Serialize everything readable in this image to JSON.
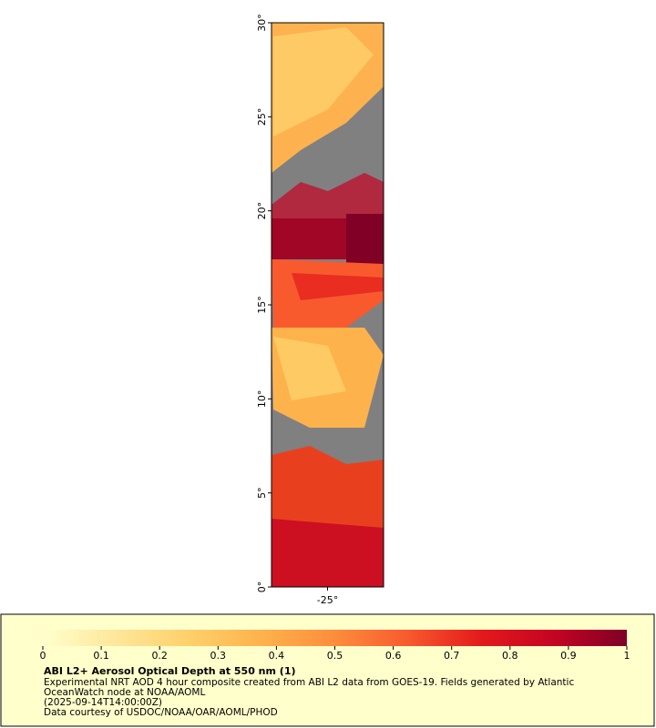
{
  "map": {
    "xlim": [
      -28,
      -22
    ],
    "ylim": [
      0,
      30
    ],
    "xticks": [
      {
        "value": -25,
        "label": "-25°"
      }
    ],
    "yticks": [
      {
        "value": 0,
        "label": "0°"
      },
      {
        "value": 5,
        "label": "5°"
      },
      {
        "value": 10,
        "label": "10°"
      },
      {
        "value": 15,
        "label": "15°"
      },
      {
        "value": 20,
        "label": "20°"
      },
      {
        "value": 25,
        "label": "25°"
      },
      {
        "value": 30,
        "label": "30°"
      }
    ]
  },
  "colorbar": {
    "range": [
      0,
      1
    ],
    "ticks": [
      0,
      0.1,
      0.2,
      0.3,
      0.4,
      0.5,
      0.6,
      0.7,
      0.8,
      0.9,
      1
    ],
    "colors": [
      "#ffffcc",
      "#fee79a",
      "#fed06a",
      "#feb24c",
      "#fd8d3c",
      "#f85a2e",
      "#e31a1c",
      "#c40423",
      "#800026"
    ]
  },
  "legend": {
    "title": "ABI L2+ Aerosol Optical Depth at 550 nm (1)",
    "lines": [
      "Experimental NRT AOD 4 hour composite created from ABI L2 data from GOES-19. Fields generated by Atlantic",
      "OceanWatch node at NOAA/AOML",
      "(2025-09-14T14:00:00Z)",
      "Data courtesy of USDOC/NOAA/OAR/AOML/PHOD"
    ]
  }
}
